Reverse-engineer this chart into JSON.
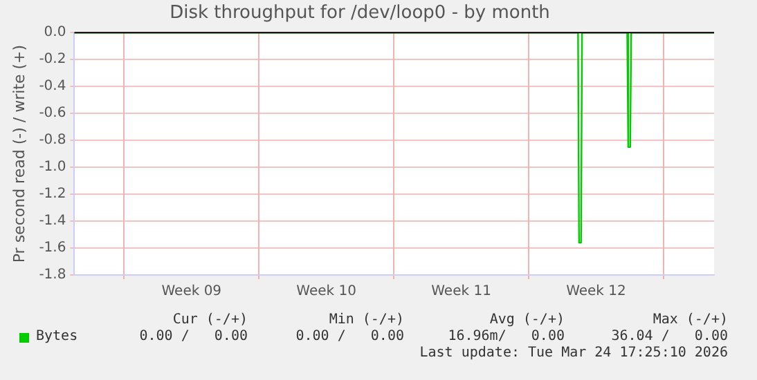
{
  "chart_data": {
    "type": "line",
    "title": "Disk throughput for /dev/loop0 - by month",
    "ylabel": "Pr second read (-) / write (+)",
    "series": [
      {
        "name": "Bytes",
        "color": "#00cc00",
        "x": [
          "2026-02-20T10:00",
          "2026-03-18T13:30",
          "2026-03-18T14:45",
          "2026-03-18T17:15",
          "2026-03-18T18:30",
          "2026-03-21T02:45",
          "2026-03-21T04:00",
          "2026-03-21T06:30",
          "2026-03-21T07:45",
          "2026-03-25T15:00"
        ],
        "values": [
          0,
          0,
          -1.56,
          -1.56,
          0,
          0,
          -0.85,
          -0.85,
          0,
          0
        ]
      }
    ],
    "xlim": [
      "2026-02-20T10:00",
      "2026-03-25T15:00"
    ],
    "xticks": [
      {
        "value": "2026-02-23",
        "label": null
      },
      {
        "value": "2026-02-26T12:00",
        "label": "Week 09"
      },
      {
        "value": "2026-03-02",
        "label": null
      },
      {
        "value": "2026-03-05T12:00",
        "label": "Week 10"
      },
      {
        "value": "2026-03-09",
        "label": null
      },
      {
        "value": "2026-03-12T12:00",
        "label": "Week 11"
      },
      {
        "value": "2026-03-16",
        "label": null
      },
      {
        "value": "2026-03-19T12:00",
        "label": "Week 12"
      },
      {
        "value": "2026-03-23",
        "label": null
      }
    ],
    "ylim": [
      -1.8,
      0
    ],
    "yticks": [
      {
        "value": 0,
        "label": "0.0"
      },
      -0.2,
      -0.4,
      -0.6,
      -0.8,
      {
        "value": -1,
        "label": "-1.0"
      },
      -1.2,
      -1.4,
      -1.6,
      -1.8
    ],
    "ref_lines": [
      {
        "axis": "y",
        "value": 0,
        "color": "#000000"
      }
    ],
    "grid": true,
    "legend": "bottom left",
    "marker": "none",
    "line_style": "solid",
    "annotations": [
      "Cur (-/+)",
      "Min (-/+)",
      "Avg (-/+)",
      "Max (-/+)",
      "0.00 /   0.00",
      "0.00 /   0.00",
      "16.96m/   0.00",
      "36.04 /   0.00",
      "Last update: Tue Mar 24 17:25:10 2026"
    ]
  }
}
